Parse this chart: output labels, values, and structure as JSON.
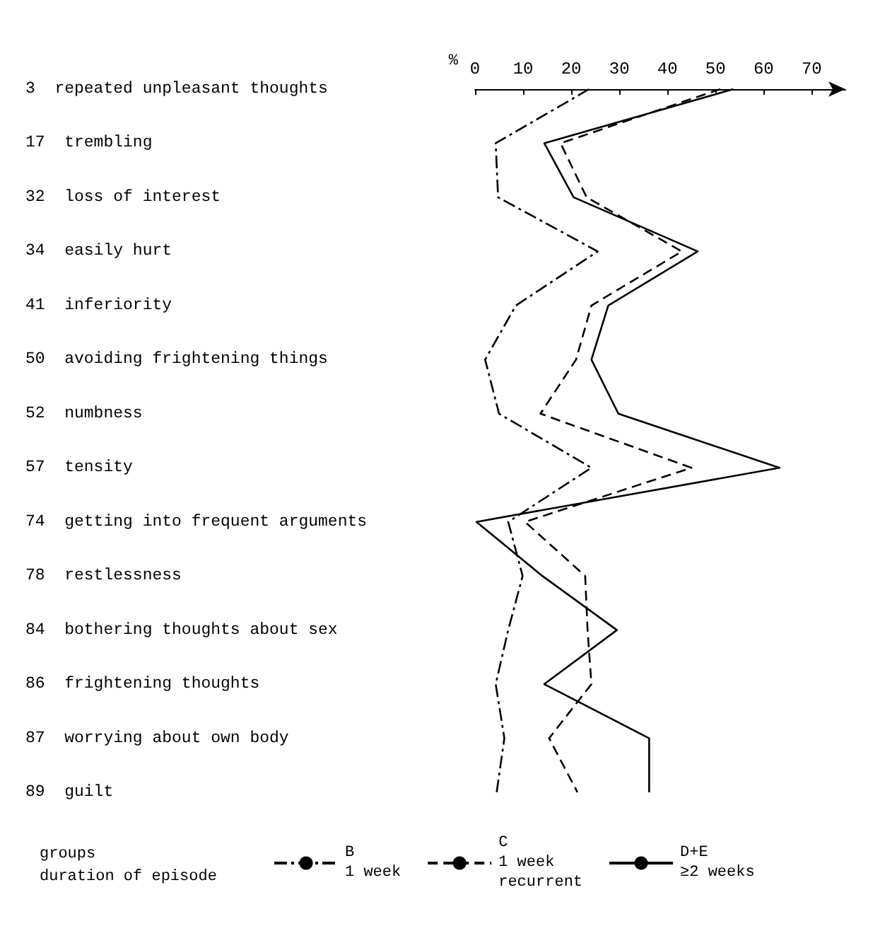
{
  "chart_data": {
    "type": "line",
    "orientation": "horizontal",
    "xlabel": "%",
    "legend_title": "groups\nduration of episode",
    "categories": [
      "3  repeated unpleasant thoughts",
      "17  trembling",
      "32  loss of interest",
      "34  easily hurt",
      "41  inferiority",
      "50  avoiding frightening things",
      "52  numbness",
      "57  tensity",
      "74  getting into frequent arguments",
      "78  restlessness",
      "84  bothering thoughts about sex",
      "86  frightening thoughts",
      "87  worrying about own body",
      "89  guilt"
    ],
    "series": [
      {
        "name": "B\n1 week",
        "color": "#000000",
        "line_style": "dashdot",
        "values": [
          23.7,
          4.3,
          4.8,
          25.5,
          8.5,
          2.1,
          5,
          24.2,
          6.9,
          9.9,
          6.9,
          4.3,
          6.1,
          4.5
        ]
      },
      {
        "name": "C\n1 week\nrecurrent",
        "color": "#000000",
        "line_style": "dashed",
        "values": [
          51,
          17.8,
          23.2,
          43,
          24.2,
          21,
          13.6,
          45,
          10.4,
          22.9,
          23.4,
          24.2,
          15.4,
          21.3
        ]
      },
      {
        "name": "D+E\n≥2 weeks",
        "color": "#000000",
        "line_style": "solid",
        "values": [
          53.7,
          14.4,
          20.5,
          46.3,
          27.7,
          24.2,
          29.8,
          63.3,
          0.3,
          14,
          29.5,
          14.4,
          36.2,
          36.2
        ]
      }
    ],
    "xlim": [
      0,
      77
    ],
    "xticks": [
      0,
      10,
      20,
      30,
      40,
      50,
      60,
      70
    ],
    "grid": false,
    "legend": "bottom",
    "marker": "none"
  }
}
